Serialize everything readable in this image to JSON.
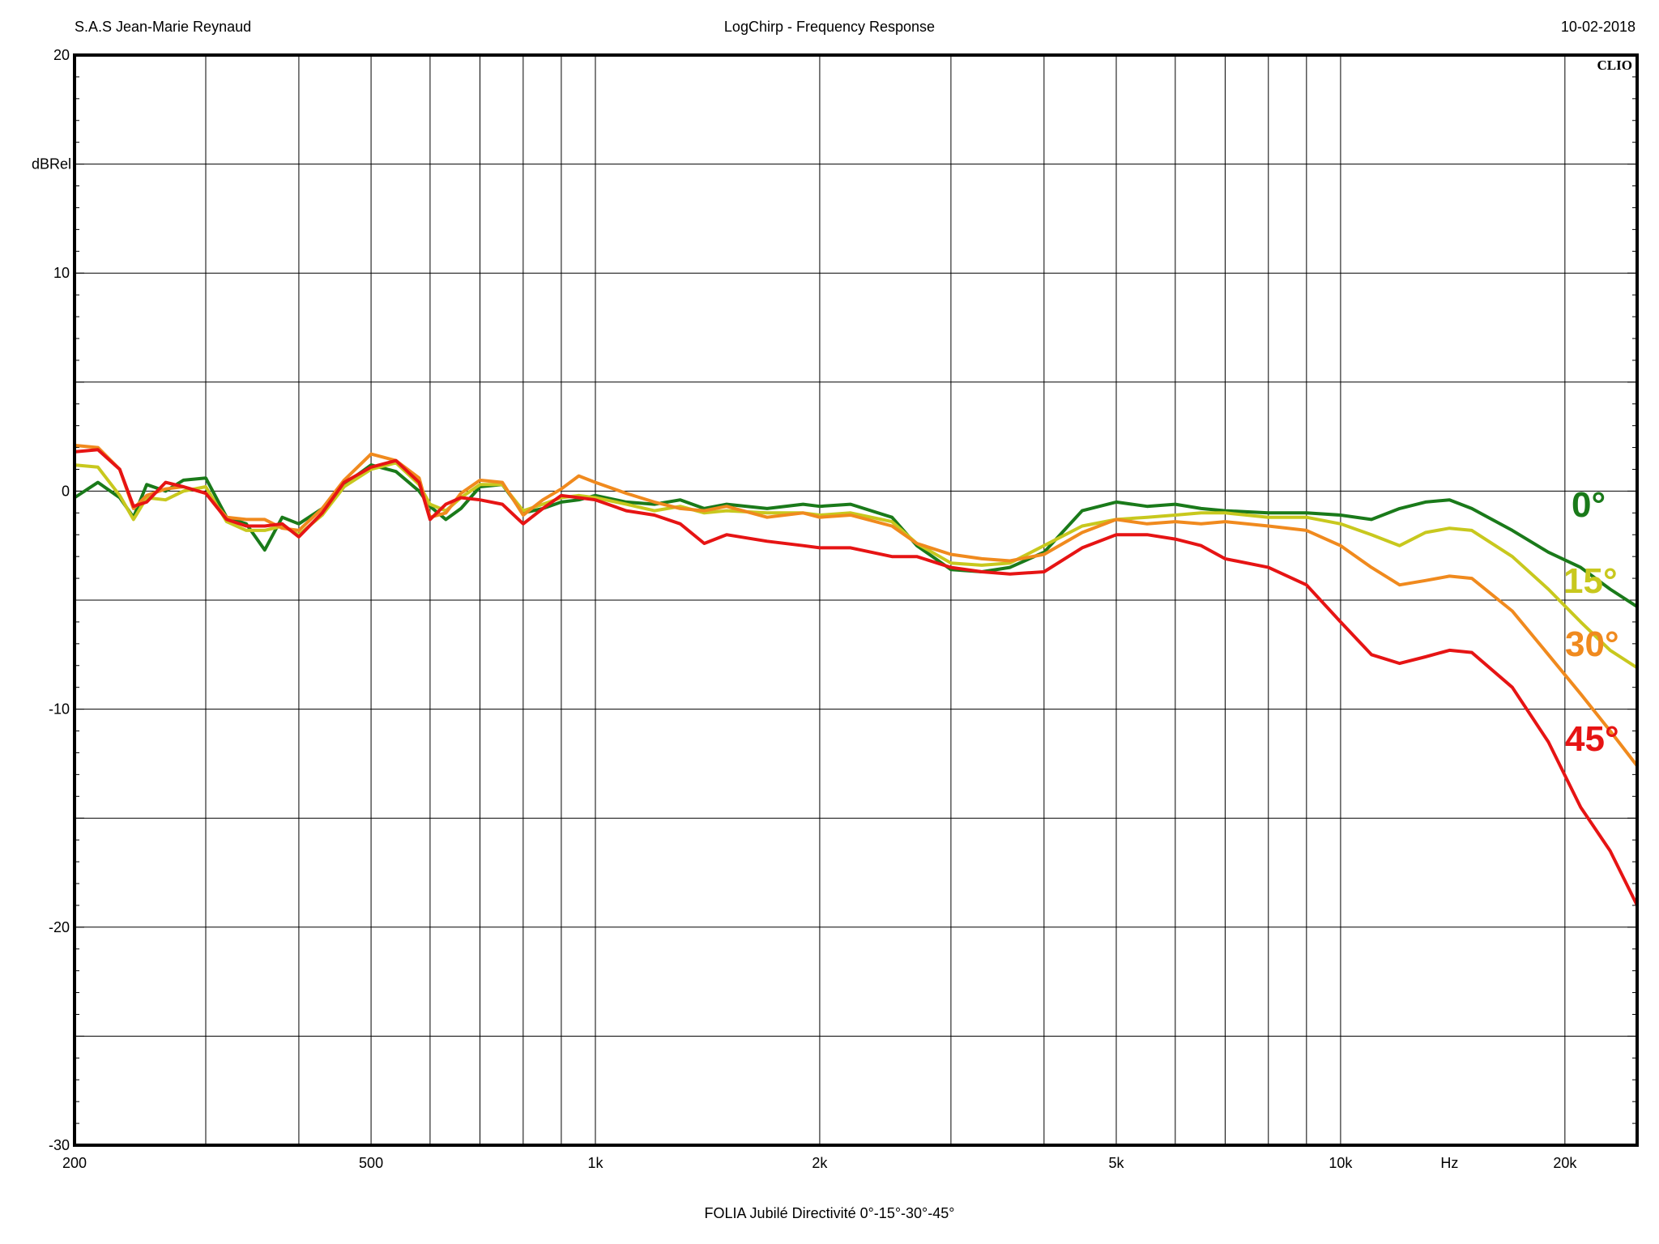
{
  "header": {
    "left": "S.A.S Jean-Marie Reynaud",
    "center": "LogChirp - Frequency Response",
    "right": "10-02-2018",
    "brand": "CLIO"
  },
  "footer": "FOLIA Jubilé Directivité 0°-15°-30°-45°",
  "chart_data": {
    "type": "line",
    "title": "LogChirp - Frequency Response",
    "ylabel": "dBRel",
    "xunit_label": "Hz",
    "xscale": "log",
    "xlim": [
      200,
      25000
    ],
    "ylim": [
      -30,
      20
    ],
    "grid": true,
    "x_tick_labels": [
      {
        "v": 200,
        "t": "200"
      },
      {
        "v": 500,
        "t": "500"
      },
      {
        "v": 1000,
        "t": "1k"
      },
      {
        "v": 2000,
        "t": "2k"
      },
      {
        "v": 5000,
        "t": "5k"
      },
      {
        "v": 10000,
        "t": "10k"
      },
      {
        "v": 20000,
        "t": "20k"
      }
    ],
    "x_gridlines": [
      300,
      400,
      500,
      600,
      700,
      800,
      900,
      1000,
      2000,
      3000,
      4000,
      5000,
      6000,
      7000,
      8000,
      9000,
      10000,
      20000
    ],
    "y_tick_labels": [
      {
        "v": 20,
        "t": "20"
      },
      {
        "v": 10,
        "t": "10"
      },
      {
        "v": 0,
        "t": "0"
      },
      {
        "v": -10,
        "t": "-10"
      },
      {
        "v": -20,
        "t": "-20"
      },
      {
        "v": -30,
        "t": "-30"
      }
    ],
    "y_gridlines": [
      15,
      10,
      5,
      0,
      -5,
      -10,
      -15,
      -20,
      -25
    ],
    "x": [
      200,
      215,
      230,
      240,
      250,
      265,
      280,
      300,
      320,
      340,
      360,
      380,
      400,
      430,
      460,
      500,
      540,
      580,
      600,
      630,
      660,
      700,
      750,
      800,
      850,
      900,
      950,
      1000,
      1100,
      1200,
      1300,
      1400,
      1500,
      1700,
      1900,
      2000,
      2200,
      2500,
      2700,
      3000,
      3300,
      3600,
      4000,
      4500,
      5000,
      5500,
      6000,
      6500,
      7000,
      8000,
      9000,
      10000,
      11000,
      12000,
      13000,
      14000,
      15000,
      17000,
      19000,
      21000,
      23000,
      25000
    ],
    "series": [
      {
        "name": "0°",
        "color": "#1a7a1a",
        "values": [
          -0.3,
          0.4,
          -0.3,
          -1.2,
          0.3,
          0.0,
          0.5,
          0.6,
          -1.2,
          -1.5,
          -2.7,
          -1.2,
          -1.5,
          -0.8,
          0.3,
          1.2,
          0.9,
          0.0,
          -0.7,
          -1.3,
          -0.8,
          0.2,
          0.3,
          -1.0,
          -0.8,
          -0.5,
          -0.4,
          -0.2,
          -0.5,
          -0.6,
          -0.4,
          -0.8,
          -0.6,
          -0.8,
          -0.6,
          -0.7,
          -0.6,
          -1.2,
          -2.5,
          -3.6,
          -3.7,
          -3.5,
          -2.8,
          -0.9,
          -0.5,
          -0.7,
          -0.6,
          -0.8,
          -0.9,
          -1.0,
          -1.0,
          -1.1,
          -1.3,
          -0.8,
          -0.5,
          -0.4,
          -0.8,
          -1.8,
          -2.8,
          -3.5,
          -4.5,
          -5.3
        ]
      },
      {
        "name": "15°",
        "color": "#c8c81e",
        "values": [
          1.2,
          1.1,
          -0.2,
          -1.3,
          -0.3,
          -0.4,
          0.0,
          0.2,
          -1.4,
          -1.8,
          -1.8,
          -1.6,
          -2.0,
          -1.1,
          0.2,
          1.0,
          1.3,
          0.3,
          -0.6,
          -0.9,
          -0.3,
          0.3,
          0.3,
          -0.9,
          -0.6,
          -0.3,
          -0.2,
          -0.3,
          -0.6,
          -0.9,
          -0.7,
          -1.0,
          -0.9,
          -1.0,
          -1.0,
          -1.1,
          -1.0,
          -1.4,
          -2.4,
          -3.3,
          -3.4,
          -3.3,
          -2.5,
          -1.6,
          -1.3,
          -1.2,
          -1.1,
          -1.0,
          -1.0,
          -1.2,
          -1.2,
          -1.5,
          -2.0,
          -2.5,
          -1.9,
          -1.7,
          -1.8,
          -3.0,
          -4.5,
          -6.0,
          -7.3,
          -8.1
        ]
      },
      {
        "name": "30°",
        "color": "#f08a1e",
        "values": [
          2.1,
          2.0,
          1.0,
          -0.8,
          -0.2,
          0.1,
          0.2,
          -0.1,
          -1.2,
          -1.3,
          -1.3,
          -1.7,
          -1.8,
          -0.8,
          0.5,
          1.7,
          1.4,
          0.6,
          -1.2,
          -1.0,
          -0.1,
          0.5,
          0.4,
          -1.1,
          -0.4,
          0.1,
          0.7,
          0.4,
          -0.1,
          -0.5,
          -0.8,
          -0.9,
          -0.7,
          -1.2,
          -1.0,
          -1.2,
          -1.1,
          -1.6,
          -2.4,
          -2.9,
          -3.1,
          -3.2,
          -2.9,
          -1.9,
          -1.3,
          -1.5,
          -1.4,
          -1.5,
          -1.4,
          -1.6,
          -1.8,
          -2.5,
          -3.5,
          -4.3,
          -4.1,
          -3.9,
          -4.0,
          -5.5,
          -7.5,
          -9.3,
          -11.0,
          -12.6
        ]
      },
      {
        "name": "45°",
        "color": "#e61414",
        "values": [
          1.8,
          1.9,
          1.0,
          -0.7,
          -0.5,
          0.4,
          0.2,
          -0.1,
          -1.3,
          -1.6,
          -1.6,
          -1.5,
          -2.1,
          -1.0,
          0.4,
          1.1,
          1.4,
          0.4,
          -1.3,
          -0.6,
          -0.3,
          -0.4,
          -0.6,
          -1.5,
          -0.8,
          -0.2,
          -0.3,
          -0.4,
          -0.9,
          -1.1,
          -1.5,
          -2.4,
          -2.0,
          -2.3,
          -2.5,
          -2.6,
          -2.6,
          -3.0,
          -3.0,
          -3.5,
          -3.7,
          -3.8,
          -3.7,
          -2.6,
          -2.0,
          -2.0,
          -2.2,
          -2.5,
          -3.1,
          -3.5,
          -4.3,
          -6.0,
          -7.5,
          -7.9,
          -7.6,
          -7.3,
          -7.4,
          -9.0,
          -11.5,
          -14.5,
          -16.5,
          -19.0
        ]
      }
    ],
    "annotations": [
      {
        "text": "0°",
        "color": "#1a7a1a"
      },
      {
        "text": "15°",
        "color": "#c8c81e"
      },
      {
        "text": "30°",
        "color": "#f08a1e"
      },
      {
        "text": "45°",
        "color": "#e61414"
      }
    ]
  }
}
